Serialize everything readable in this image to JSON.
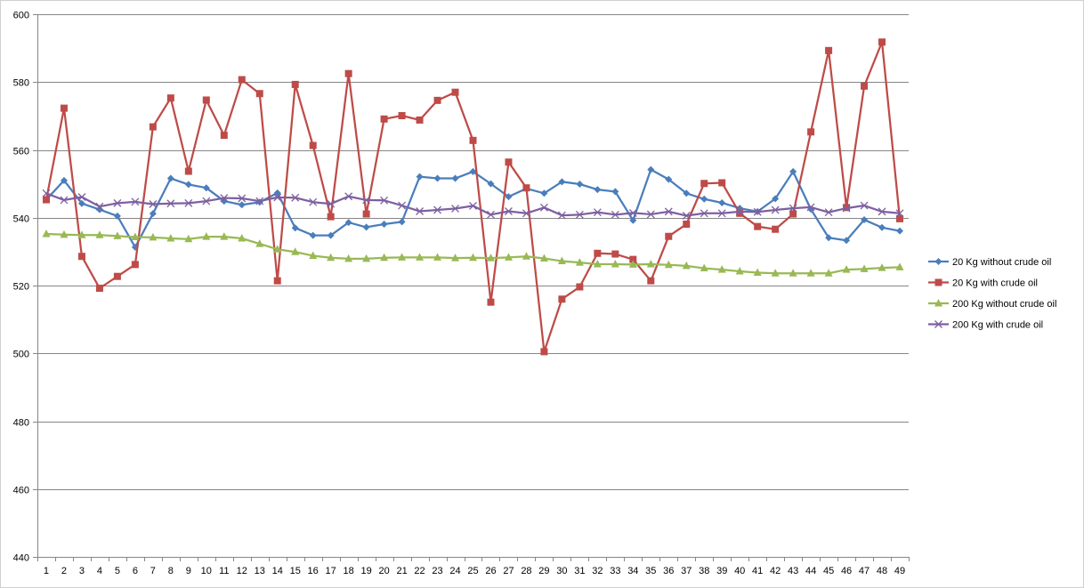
{
  "chart_data": {
    "type": "line",
    "title": "",
    "xlabel": "",
    "ylabel": "",
    "ylim": [
      440,
      600
    ],
    "y_ticks": [
      "440",
      "460",
      "480",
      "500",
      "520",
      "540",
      "560",
      "580",
      "600"
    ],
    "grid": true,
    "legend": "right",
    "categories": [
      "1",
      "2",
      "3",
      "4",
      "5",
      "6",
      "7",
      "8",
      "9",
      "10",
      "11",
      "12",
      "13",
      "14",
      "15",
      "16",
      "17",
      "18",
      "19",
      "20",
      "21",
      "22",
      "23",
      "24",
      "25",
      "26",
      "27",
      "28",
      "29",
      "30",
      "31",
      "32",
      "33",
      "34",
      "35",
      "36",
      "37",
      "38",
      "39",
      "40",
      "41",
      "42",
      "43",
      "44",
      "45",
      "46",
      "47",
      "48",
      "49"
    ],
    "series": [
      {
        "name": "20 Kg without crude oil",
        "color": "#4a7ebb",
        "marker": "diamond",
        "values": [
          545.3,
          551,
          544.2,
          542.4,
          540.5,
          531.3,
          541.2,
          551.6,
          549.8,
          548.8,
          544.9,
          543.8,
          544.6,
          547.3,
          537,
          534.8,
          534.8,
          538.6,
          537.2,
          538.1,
          538.8,
          552.1,
          551.6,
          551.6,
          553.6,
          550,
          546.2,
          548.6,
          547.2,
          550.6,
          549.9,
          548.3,
          547.7,
          539.2,
          554.2,
          551.3,
          547.2,
          545.5,
          544.4,
          542.8,
          541.8,
          545.6,
          553.6,
          542.5,
          534.1,
          533.3,
          539.4,
          537.1,
          536.1
        ]
      },
      {
        "name": "20 Kg with crude oil",
        "color": "#be4b48",
        "marker": "square",
        "values": [
          545.3,
          572.3,
          528.6,
          519.2,
          522.7,
          526.2,
          566.8,
          575.3,
          553.7,
          574.7,
          564.3,
          580.7,
          576.6,
          521.4,
          579.3,
          561.3,
          540.3,
          582.5,
          541.1,
          569.1,
          570.1,
          568.8,
          574.6,
          577,
          562.8,
          515.1,
          556.4,
          548.8,
          500.5,
          516,
          519.6,
          529.5,
          529.3,
          527.7,
          521.4,
          534.5,
          538.1,
          550.1,
          550.3,
          541.3,
          537.4,
          536.6,
          541.1,
          565.3,
          589.3,
          543,
          578.8,
          591.8,
          539.7
        ]
      },
      {
        "name": "200 Kg without crude oil",
        "color": "#98b954",
        "marker": "triangle",
        "values": [
          535.2,
          535.0,
          534.9,
          534.9,
          534.6,
          534.3,
          534.2,
          533.9,
          533.7,
          534.4,
          534.4,
          533.9,
          532.3,
          530.7,
          529.9,
          528.8,
          528.2,
          527.9,
          527.9,
          528.2,
          528.3,
          528.3,
          528.3,
          528.1,
          528.2,
          528.1,
          528.3,
          528.6,
          528.0,
          527.2,
          526.8,
          526.3,
          526.3,
          526.2,
          526.3,
          526.1,
          525.8,
          525.1,
          524.7,
          524.2,
          523.8,
          523.6,
          523.6,
          523.6,
          523.6,
          524.7,
          524.9,
          525.2,
          525.4
        ]
      },
      {
        "name": "200 Kg with crude oil",
        "color": "#7d60a0",
        "marker": "x",
        "values": [
          547.2,
          545.2,
          546.1,
          543.3,
          544.3,
          544.7,
          544.0,
          544.2,
          544.3,
          544.9,
          545.8,
          545.7,
          544.9,
          546.0,
          545.9,
          544.6,
          544.1,
          546.3,
          545.2,
          545.1,
          543.6,
          541.9,
          542.3,
          542.7,
          543.5,
          540.9,
          541.9,
          541.3,
          543.0,
          540.7,
          540.9,
          541.6,
          540.9,
          541.4,
          541.0,
          541.8,
          540.6,
          541.3,
          541.3,
          541.8,
          541.7,
          542.3,
          542.8,
          543.1,
          541.6,
          542.8,
          543.6,
          541.8,
          541.3
        ]
      }
    ]
  }
}
